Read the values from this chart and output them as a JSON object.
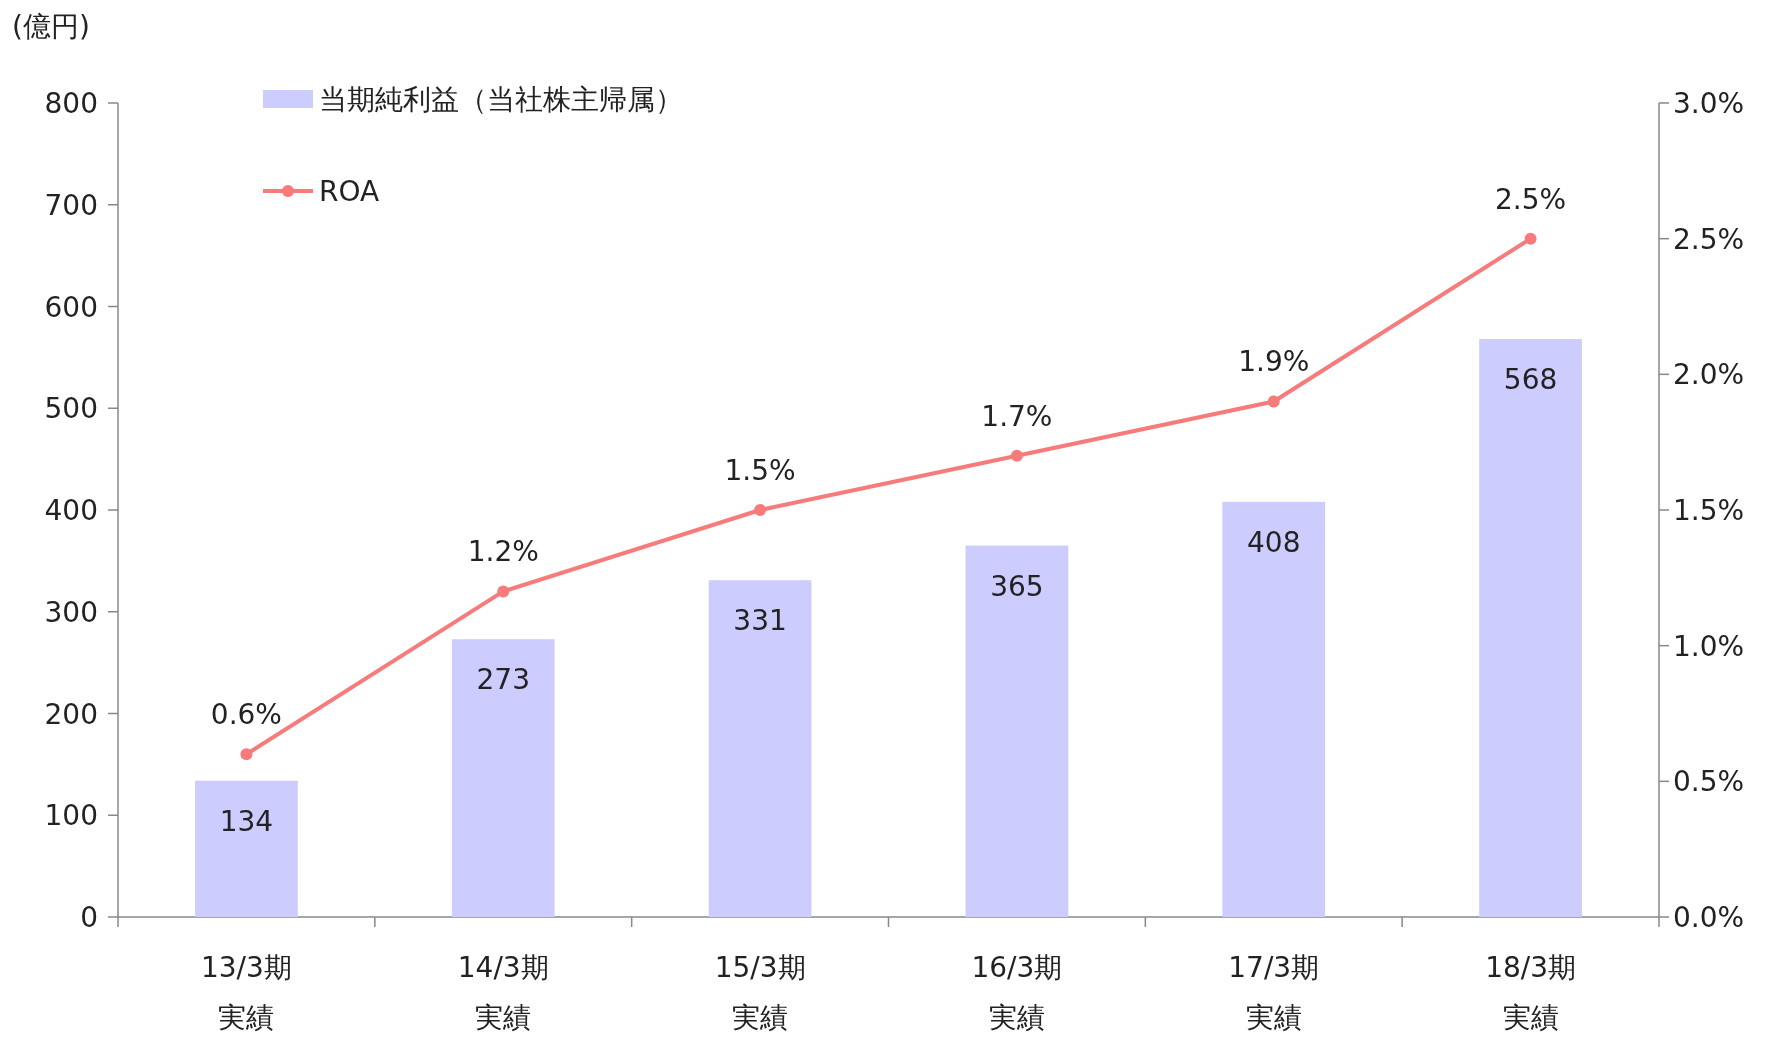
{
  "chart_data": {
    "type": "bar",
    "ylabel": "(億円)",
    "categories": [
      "13/3期実績",
      "14/3期実績",
      "15/3期実績",
      "16/3期実績",
      "17/3期実績",
      "18/3期実績"
    ],
    "series": [
      {
        "name": "当期純利益（当社株主帰属）",
        "color": "#ccccff",
        "values": [
          134,
          273,
          331,
          365,
          408,
          568
        ],
        "value_labels": [
          "134",
          "273",
          "331",
          "365",
          "408",
          "568"
        ]
      },
      {
        "name": "ROA",
        "type": "line",
        "axis": "y2",
        "color": "#f77b7b",
        "values": [
          0.6,
          1.2,
          1.5,
          1.7,
          1.9,
          2.5
        ],
        "value_labels": [
          "0.6%",
          "1.2%",
          "1.5%",
          "1.7%",
          "1.9%",
          "2.5%"
        ]
      }
    ],
    "ylim": [
      0,
      800
    ],
    "yticks": [
      0,
      100,
      200,
      300,
      400,
      500,
      600,
      700,
      800
    ],
    "y2lim": [
      0,
      3
    ],
    "y2ticks": [
      {
        "value": 0,
        "label": "0.0%"
      },
      {
        "value": 0.5,
        "label": "0.5%"
      },
      {
        "value": 1,
        "label": "1.0%"
      },
      {
        "value": 1.5,
        "label": "1.5%"
      },
      {
        "value": 2,
        "label": "2.0%"
      },
      {
        "value": 2.5,
        "label": "2.5%"
      },
      {
        "value": 3,
        "label": "3.0%"
      }
    ],
    "marker": "circle",
    "legend": "top left",
    "grid": false
  }
}
